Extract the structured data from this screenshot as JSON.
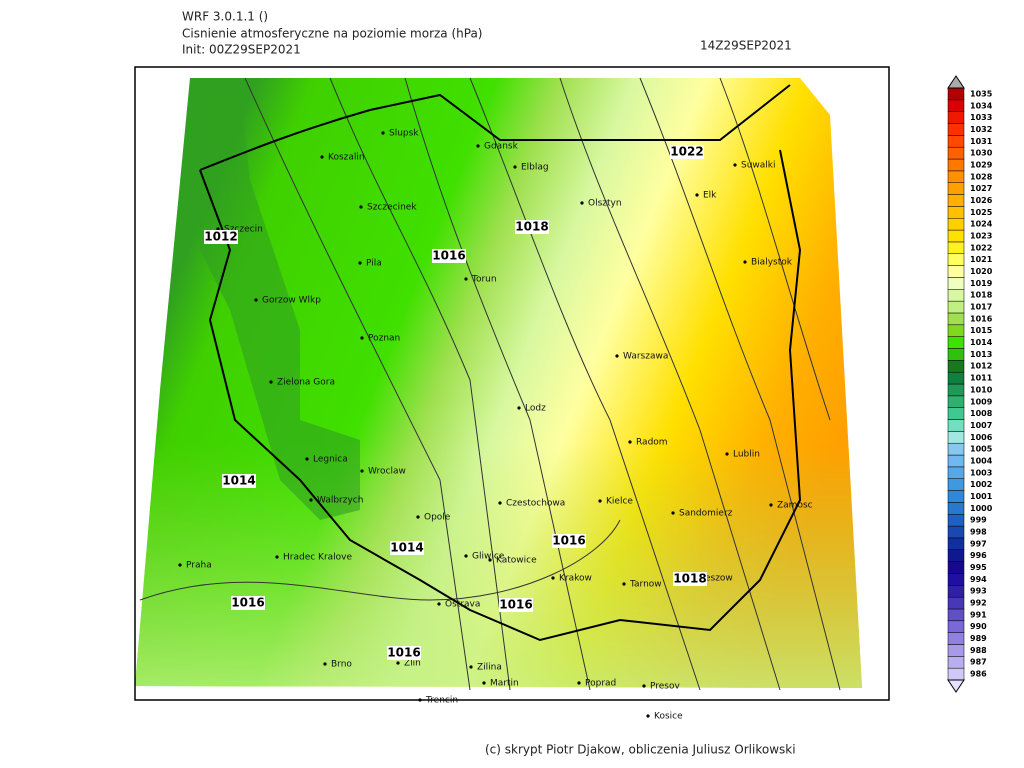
{
  "header": {
    "model": "WRF 3.0.1.1 ()",
    "title": "Cisnienie atmosferyczne na poziomie morza (hPa)",
    "init": "Init: 00Z29SEP2021",
    "valid": "14Z29SEP2021"
  },
  "footer": "(c) skrypt Piotr Djakow, obliczenia Juliusz Orlikowski",
  "cities": [
    "Slupsk",
    "Gdansk",
    "Koszalin",
    "Elblag",
    "Suwalki",
    "Szczecinek",
    "Olsztyn",
    "Elk",
    "Szczecin",
    "Pila",
    "Torun",
    "Bialystok",
    "Gorzow Wlkp",
    "Poznan",
    "Warszawa",
    "Zielona Gora",
    "Lodz",
    "Radom",
    "Legnica",
    "Wroclaw",
    "Lublin",
    "Walbrzych",
    "Czestochowa",
    "Kielce",
    "Opole",
    "Sandomierz",
    "Zamosc",
    "Hradec Kralove",
    "Gliwice",
    "Katowice",
    "Praha",
    "Krakow",
    "Tarnow",
    "Rzeszow",
    "Ostrava",
    "Brno",
    "Zlin",
    "Zilina",
    "Martin",
    "Poprad",
    "Presov",
    "Trencin",
    "Kosice"
  ],
  "contour_labels": [
    1012,
    1014,
    1014,
    1016,
    1018,
    1022,
    1016,
    1016,
    1016,
    1016,
    1018
  ],
  "colorbar": {
    "levels": [
      986,
      987,
      988,
      989,
      990,
      991,
      992,
      993,
      994,
      995,
      996,
      997,
      998,
      999,
      1000,
      1001,
      1002,
      1003,
      1004,
      1005,
      1006,
      1007,
      1008,
      1009,
      1010,
      1011,
      1012,
      1013,
      1014,
      1015,
      1016,
      1017,
      1018,
      1019,
      1020,
      1021,
      1022,
      1023,
      1024,
      1025,
      1026,
      1027,
      1028,
      1029,
      1030,
      1031,
      1032,
      1033,
      1034,
      1035
    ],
    "colors": [
      "#d0c8f8",
      "#b8aef0",
      "#a89ae8",
      "#9080e0",
      "#7868d8",
      "#6050c8",
      "#4838b8",
      "#3020a8",
      "#2010a0",
      "#180890",
      "#101890",
      "#1030a0",
      "#1848b0",
      "#2060c0",
      "#2878d0",
      "#3088d8",
      "#4098e0",
      "#58a8e8",
      "#70b8f0",
      "#88c8f0",
      "#a0e8e0",
      "#70e0c0",
      "#40c890",
      "#30b070",
      "#209858",
      "#108040",
      "#187820",
      "#30c010",
      "#40e000",
      "#80d820",
      "#a0e050",
      "#c0f080",
      "#d8f8a0",
      "#f0ffc0",
      "#ffffa0",
      "#ffff60",
      "#fff020",
      "#ffe000",
      "#ffd000",
      "#ffc000",
      "#ffb000",
      "#ffa000",
      "#ff9000",
      "#ff7800",
      "#ff6000",
      "#ff4800",
      "#ff3000",
      "#f01800",
      "#d80000",
      "#b00000"
    ]
  }
}
